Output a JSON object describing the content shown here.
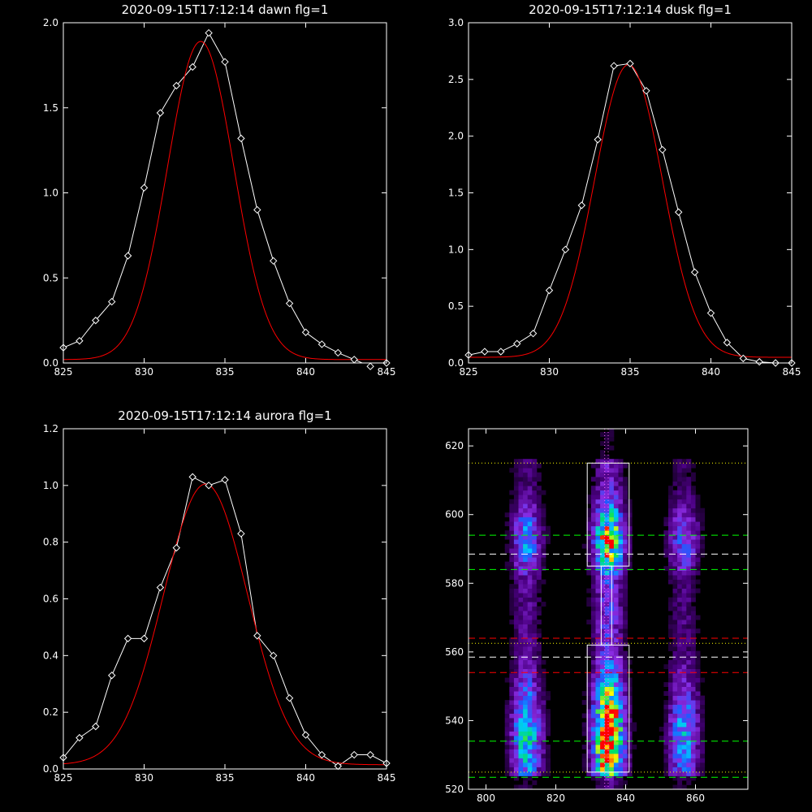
{
  "chart_data": [
    {
      "type": "line",
      "title": "2020-09-15T17:12:14 dawn flg=1",
      "xlim": [
        825,
        845
      ],
      "ylim": [
        0,
        2.0
      ],
      "xticks": [
        825,
        830,
        835,
        840,
        845
      ],
      "yticks": [
        0.0,
        0.5,
        1.0,
        1.5,
        2.0
      ],
      "ytick_labels": [
        "0.0",
        "0.5",
        "1.0",
        "1.5",
        "2.0"
      ],
      "series": [
        {
          "style": "data-diamonds",
          "color": "#ffffff",
          "x": [
            825,
            826,
            827,
            828,
            829,
            830,
            831,
            832,
            833,
            834,
            835,
            836,
            837,
            838,
            839,
            840,
            841,
            842,
            843,
            844,
            845
          ],
          "y": [
            0.09,
            0.13,
            0.25,
            0.36,
            0.63,
            1.03,
            1.47,
            1.63,
            1.74,
            1.94,
            1.77,
            1.32,
            0.9,
            0.6,
            0.35,
            0.18,
            0.11,
            0.06,
            0.02,
            -0.02,
            0.0
          ]
        },
        {
          "style": "gaussian-fit",
          "color": "#ff0000",
          "amplitude": 1.87,
          "center": 833.5,
          "sigma": 2.05,
          "offset": 0.02
        }
      ]
    },
    {
      "type": "line",
      "title": "2020-09-15T17:12:14 dusk flg=1",
      "xlim": [
        825,
        845
      ],
      "ylim": [
        0,
        3.0
      ],
      "xticks": [
        825,
        830,
        835,
        840,
        845
      ],
      "yticks": [
        0.0,
        0.5,
        1.0,
        1.5,
        2.0,
        2.5,
        3.0
      ],
      "ytick_labels": [
        "0.0",
        "0.5",
        "1.0",
        "1.5",
        "2.0",
        "2.5",
        "3.0"
      ],
      "series": [
        {
          "style": "data-diamonds",
          "color": "#ffffff",
          "x": [
            825,
            826,
            827,
            828,
            829,
            830,
            831,
            832,
            833,
            834,
            835,
            836,
            837,
            838,
            839,
            840,
            841,
            842,
            843,
            844,
            845
          ],
          "y": [
            0.07,
            0.1,
            0.1,
            0.17,
            0.26,
            0.64,
            1.0,
            1.39,
            1.97,
            2.62,
            2.64,
            2.4,
            1.88,
            1.33,
            0.8,
            0.44,
            0.18,
            0.04,
            0.01,
            0.0,
            0.0
          ]
        },
        {
          "style": "gaussian-fit",
          "color": "#ff0000",
          "amplitude": 2.58,
          "center": 834.9,
          "sigma": 2.1,
          "offset": 0.05
        }
      ]
    },
    {
      "type": "line",
      "title": "2020-09-15T17:12:14 aurora flg=1",
      "xlim": [
        825,
        845
      ],
      "ylim": [
        0,
        1.2
      ],
      "xticks": [
        825,
        830,
        835,
        840,
        845
      ],
      "yticks": [
        0.0,
        0.2,
        0.4,
        0.6,
        0.8,
        1.0,
        1.2
      ],
      "ytick_labels": [
        "0.0",
        "0.2",
        "0.4",
        "0.6",
        "0.8",
        "1.0",
        "1.2"
      ],
      "series": [
        {
          "style": "data-diamonds",
          "color": "#ffffff",
          "x": [
            825,
            826,
            827,
            828,
            829,
            830,
            831,
            832,
            833,
            834,
            835,
            836,
            837,
            838,
            839,
            840,
            841,
            842,
            843,
            844,
            845
          ],
          "y": [
            0.04,
            0.11,
            0.15,
            0.33,
            0.46,
            0.46,
            0.64,
            0.78,
            1.03,
            1.0,
            1.02,
            0.83,
            0.47,
            0.4,
            0.25,
            0.12,
            0.05,
            0.01,
            0.05,
            0.05,
            0.02
          ]
        },
        {
          "style": "gaussian-fit",
          "color": "#ff0000",
          "amplitude": 0.99,
          "center": 833.8,
          "sigma": 2.6,
          "offset": 0.015
        }
      ]
    },
    {
      "type": "heatmap",
      "xlim": [
        795,
        875
      ],
      "ylim": [
        520,
        625
      ],
      "xticks": [
        800,
        820,
        840,
        860
      ],
      "yticks": [
        520,
        540,
        560,
        580,
        600,
        620
      ],
      "colormap": [
        "#000000",
        "#4b0082",
        "#8a2be2",
        "#1e5bff",
        "#00c8ff",
        "#00e060",
        "#ffff00",
        "#ff0000"
      ],
      "intensity_columns": [
        {
          "center": 811,
          "width": 6,
          "peak": 0.55
        },
        {
          "center": 834.5,
          "width": 6,
          "peak": 1.0
        },
        {
          "center": 856,
          "width": 6,
          "peak": 0.45
        }
      ],
      "intensity_rows": [
        {
          "center": 592,
          "width": 7,
          "peak": 0.75
        },
        {
          "center": 535,
          "width": 12,
          "peak": 1.0
        },
        {
          "center": 572,
          "width": 22,
          "peak": 0.12
        }
      ],
      "boxes": [
        {
          "x": [
            829,
            841
          ],
          "y": [
            585,
            615
          ],
          "color": "#ffffff"
        },
        {
          "x": [
            833,
            836
          ],
          "y": [
            562,
            585
          ],
          "color": "#ffffff"
        },
        {
          "x": [
            829,
            841
          ],
          "y": [
            525,
            562
          ],
          "color": "#ffffff"
        }
      ],
      "vlines": [
        {
          "x": 834,
          "style": "dotted",
          "color": "#ff66ff"
        },
        {
          "x": 835,
          "style": "dotted",
          "color": "#ff66ff"
        }
      ],
      "hlines": [
        {
          "y": 615,
          "style": "dotted",
          "color": "#ffff00"
        },
        {
          "y": 594,
          "style": "dashed",
          "color": "#00ff00"
        },
        {
          "y": 588.5,
          "style": "dashed",
          "color": "#ffffff"
        },
        {
          "y": 584,
          "style": "dashed",
          "color": "#00ff00"
        },
        {
          "y": 564,
          "style": "dashed",
          "color": "#ff0000"
        },
        {
          "y": 562.5,
          "style": "dotted",
          "color": "#ffff00"
        },
        {
          "y": 558.5,
          "style": "dashed",
          "color": "#ffffff"
        },
        {
          "y": 554,
          "style": "dashed",
          "color": "#ff0000"
        },
        {
          "y": 534,
          "style": "dashed",
          "color": "#00ff00"
        },
        {
          "y": 525,
          "style": "dotted",
          "color": "#ffff00"
        },
        {
          "y": 523.5,
          "style": "dashed",
          "color": "#00ff00"
        }
      ]
    }
  ]
}
